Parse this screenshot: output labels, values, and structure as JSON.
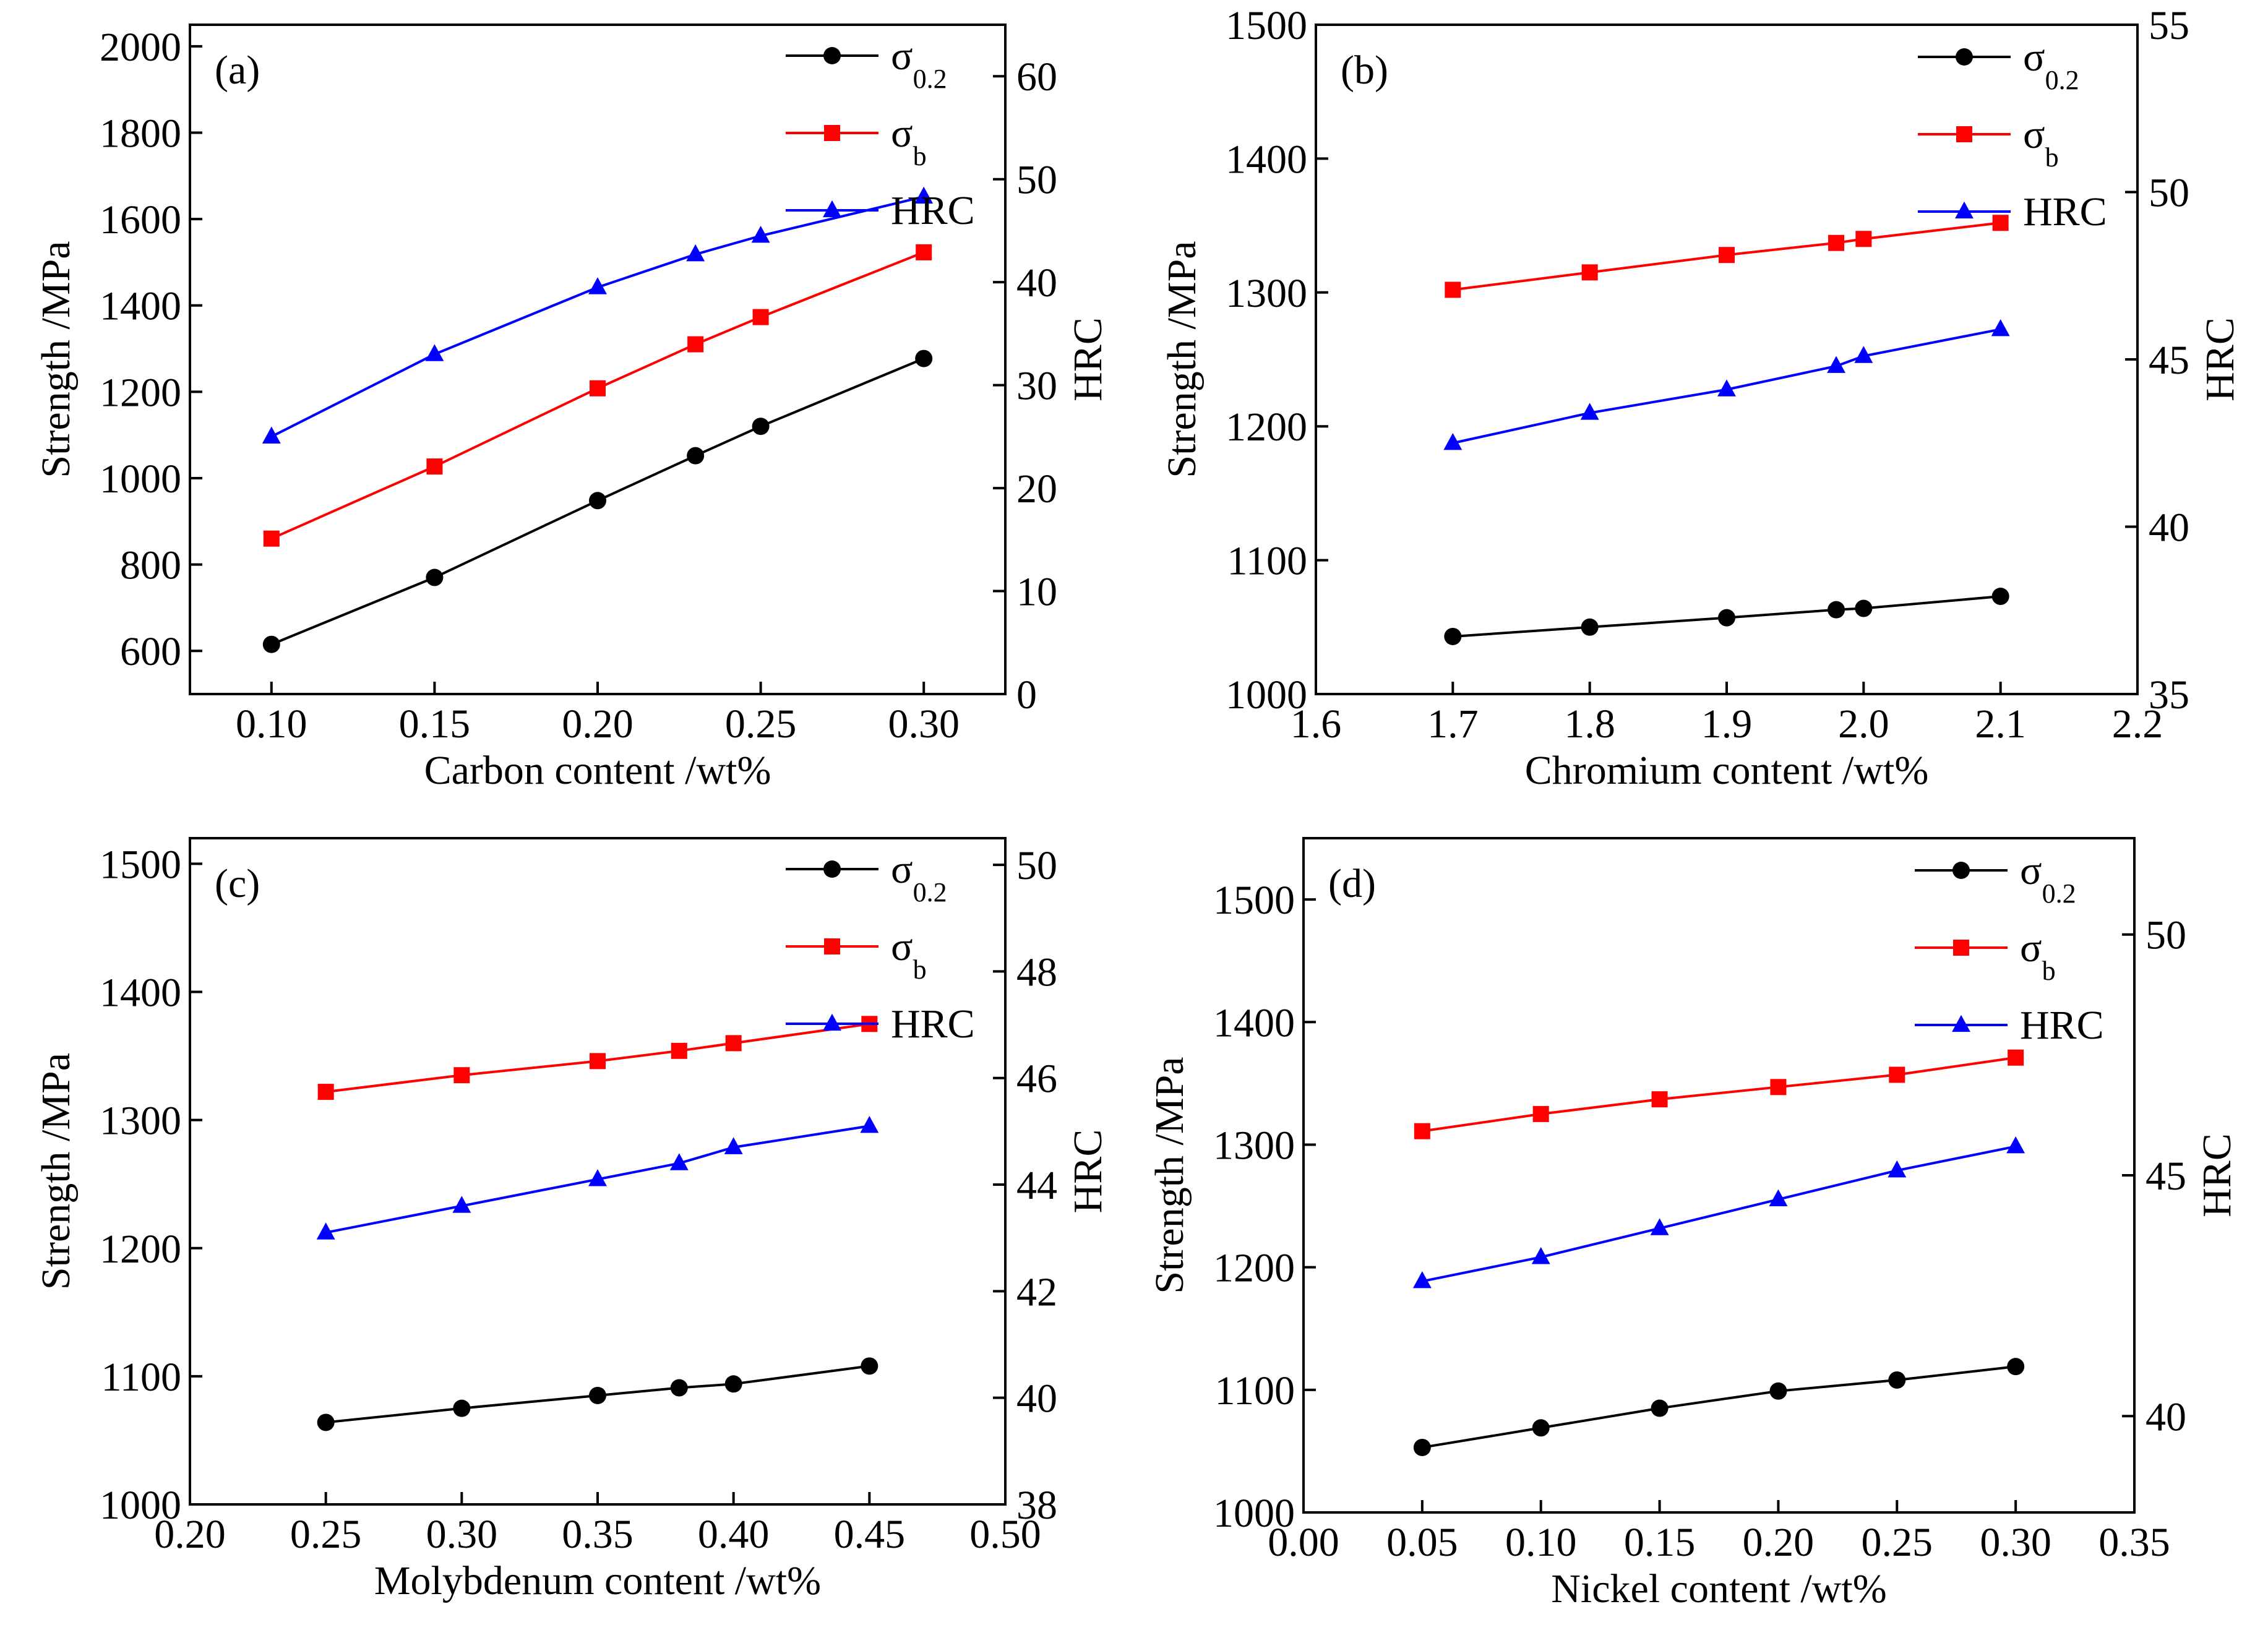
{
  "colors": {
    "sigma02": "#000000",
    "sigmab": "#ff0000",
    "hrc": "#0000ff",
    "axis": "#000000"
  },
  "legend_labels": [
    {
      "base": "σ",
      "sub": "0.2"
    },
    {
      "base": "σ",
      "sub": "b"
    },
    {
      "base": "HRC",
      "sub": ""
    }
  ],
  "chart_data": [
    {
      "type": "line",
      "panel_label": "(a)",
      "xlabel": "Carbon content /wt%",
      "ylabel": "Strength /MPa",
      "y2label": "HRC",
      "xlim": [
        0.075,
        0.325
      ],
      "ylim": [
        500,
        2050
      ],
      "y2lim": [
        0,
        65
      ],
      "xticks": [
        "0.10",
        "0.15",
        "0.20",
        "0.25",
        "0.30"
      ],
      "yticks": [
        "600",
        "800",
        "1000",
        "1200",
        "1400",
        "1600",
        "1800",
        "2000"
      ],
      "y2ticks": [
        "0",
        "10",
        "20",
        "30",
        "40",
        "50",
        "60"
      ],
      "legend_position": "top-right",
      "series": [
        {
          "name": "σ0.2",
          "axis": "left",
          "marker": "circle",
          "x": [
            0.1,
            0.15,
            0.2,
            0.23,
            0.25,
            0.3
          ],
          "values": [
            615,
            770,
            948,
            1052,
            1120,
            1277
          ]
        },
        {
          "name": "σb",
          "axis": "left",
          "marker": "square",
          "x": [
            0.1,
            0.15,
            0.2,
            0.23,
            0.25,
            0.3
          ],
          "values": [
            860,
            1027,
            1208,
            1310,
            1373,
            1523
          ]
        },
        {
          "name": "HRC",
          "axis": "right",
          "marker": "triangle",
          "x": [
            0.1,
            0.15,
            0.2,
            0.23,
            0.25,
            0.3
          ],
          "values": [
            25.0,
            33.0,
            39.5,
            42.7,
            44.5,
            48.3
          ]
        }
      ]
    },
    {
      "type": "line",
      "panel_label": "(b)",
      "xlabel": "Chromium content /wt%",
      "ylabel": "Strength /MPa",
      "y2label": "HRC",
      "xlim": [
        1.6,
        2.2
      ],
      "ylim": [
        1000,
        1500
      ],
      "y2lim": [
        35,
        55
      ],
      "xticks": [
        "1.6",
        "1.7",
        "1.8",
        "1.9",
        "2.0",
        "2.1",
        "2.2"
      ],
      "yticks": [
        "1000",
        "1100",
        "1200",
        "1300",
        "1400",
        "1500"
      ],
      "y2ticks": [
        "35",
        "40",
        "45",
        "50",
        "55"
      ],
      "legend_position": "top-right",
      "series": [
        {
          "name": "σ0.2",
          "axis": "left",
          "marker": "circle",
          "x": [
            1.7,
            1.8,
            1.9,
            1.98,
            2.0,
            2.1
          ],
          "values": [
            1043,
            1050,
            1057,
            1063,
            1064,
            1073
          ]
        },
        {
          "name": "σb",
          "axis": "left",
          "marker": "square",
          "x": [
            1.7,
            1.8,
            1.9,
            1.98,
            2.0,
            2.1
          ],
          "values": [
            1302,
            1315,
            1328,
            1337,
            1340,
            1352
          ]
        },
        {
          "name": "HRC",
          "axis": "right",
          "marker": "triangle",
          "x": [
            1.7,
            1.8,
            1.9,
            1.98,
            2.0,
            2.1
          ],
          "values": [
            42.5,
            43.4,
            44.1,
            44.8,
            45.1,
            45.9
          ]
        }
      ]
    },
    {
      "type": "line",
      "panel_label": "(c)",
      "xlabel": "Molybdenum content /wt%",
      "ylabel": "Strength /MPa",
      "y2label": "HRC",
      "xlim": [
        0.2,
        0.5
      ],
      "ylim": [
        1000,
        1520
      ],
      "y2lim": [
        38,
        50.5
      ],
      "xticks": [
        "0.20",
        "0.25",
        "0.30",
        "0.35",
        "0.40",
        "0.45",
        "0.50"
      ],
      "yticks": [
        "1000",
        "1100",
        "1200",
        "1300",
        "1400",
        "1500"
      ],
      "y2ticks": [
        "38",
        "40",
        "42",
        "44",
        "46",
        "48",
        "50"
      ],
      "legend_position": "top-right",
      "series": [
        {
          "name": "σ0.2",
          "axis": "left",
          "marker": "circle",
          "x": [
            0.25,
            0.3,
            0.35,
            0.38,
            0.4,
            0.45
          ],
          "values": [
            1064,
            1075,
            1085,
            1091,
            1094,
            1108
          ]
        },
        {
          "name": "σb",
          "axis": "left",
          "marker": "square",
          "x": [
            0.25,
            0.3,
            0.35,
            0.38,
            0.4,
            0.45
          ],
          "values": [
            1322,
            1335,
            1346,
            1354,
            1360,
            1375
          ]
        },
        {
          "name": "HRC",
          "axis": "right",
          "marker": "triangle",
          "x": [
            0.25,
            0.3,
            0.35,
            0.38,
            0.4,
            0.45
          ],
          "values": [
            43.1,
            43.6,
            44.1,
            44.4,
            44.7,
            45.1
          ]
        }
      ]
    },
    {
      "type": "line",
      "panel_label": "(d)",
      "xlabel": "Nickel content /wt%",
      "ylabel": "Strength /MPa",
      "y2label": "HRC",
      "xlim": [
        0.0,
        0.35
      ],
      "ylim": [
        1000,
        1550
      ],
      "y2lim": [
        38,
        52
      ],
      "xticks": [
        "0.00",
        "0.05",
        "0.10",
        "0.15",
        "0.20",
        "0.25",
        "0.30",
        "0.35"
      ],
      "yticks": [
        "1000",
        "1100",
        "1200",
        "1300",
        "1400",
        "1500"
      ],
      "y2ticks": [
        "40",
        "45",
        "50"
      ],
      "legend_position": "top-right",
      "series": [
        {
          "name": "σ0.2",
          "axis": "left",
          "marker": "circle",
          "x": [
            0.05,
            0.1,
            0.15,
            0.2,
            0.25,
            0.3
          ],
          "values": [
            1053,
            1069,
            1085,
            1099,
            1108,
            1119
          ]
        },
        {
          "name": "σb",
          "axis": "left",
          "marker": "square",
          "x": [
            0.05,
            0.1,
            0.15,
            0.2,
            0.25,
            0.3
          ],
          "values": [
            1311,
            1325,
            1337,
            1347,
            1357,
            1371
          ]
        },
        {
          "name": "HRC",
          "axis": "right",
          "marker": "triangle",
          "x": [
            0.05,
            0.1,
            0.15,
            0.2,
            0.25,
            0.3
          ],
          "values": [
            42.8,
            43.3,
            43.9,
            44.5,
            45.1,
            45.6
          ]
        }
      ]
    }
  ]
}
